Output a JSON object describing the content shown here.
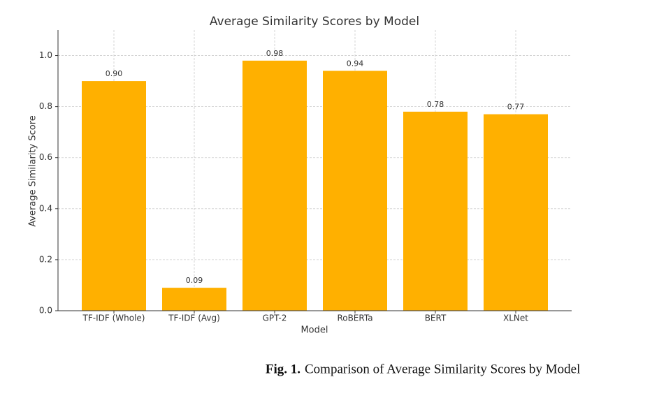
{
  "chart_data": {
    "type": "bar",
    "title": "Average Similarity Scores by Model",
    "x_label": "Model",
    "y_label": "Average Similarity Score",
    "categories": [
      "TF-IDF (Whole)",
      "TF-IDF (Avg)",
      "GPT-2",
      "RoBERTa",
      "BERT",
      "XLNet"
    ],
    "values": [
      0.9,
      0.09,
      0.98,
      0.94,
      0.78,
      0.77
    ],
    "value_labels": [
      "0.90",
      "0.09",
      "0.98",
      "0.94",
      "0.78",
      "0.77"
    ],
    "color": "#ffb000",
    "ylim": [
      0,
      1.1
    ],
    "yticks": [
      {
        "value": 0,
        "label": "0.0"
      },
      0.2,
      0.4,
      0.6,
      0.8,
      {
        "value": 1,
        "label": "1.0"
      }
    ],
    "grid": true
  },
  "caption": {
    "label": "Fig. 1.",
    "text": "Comparison of Average Similarity Scores by Model"
  }
}
